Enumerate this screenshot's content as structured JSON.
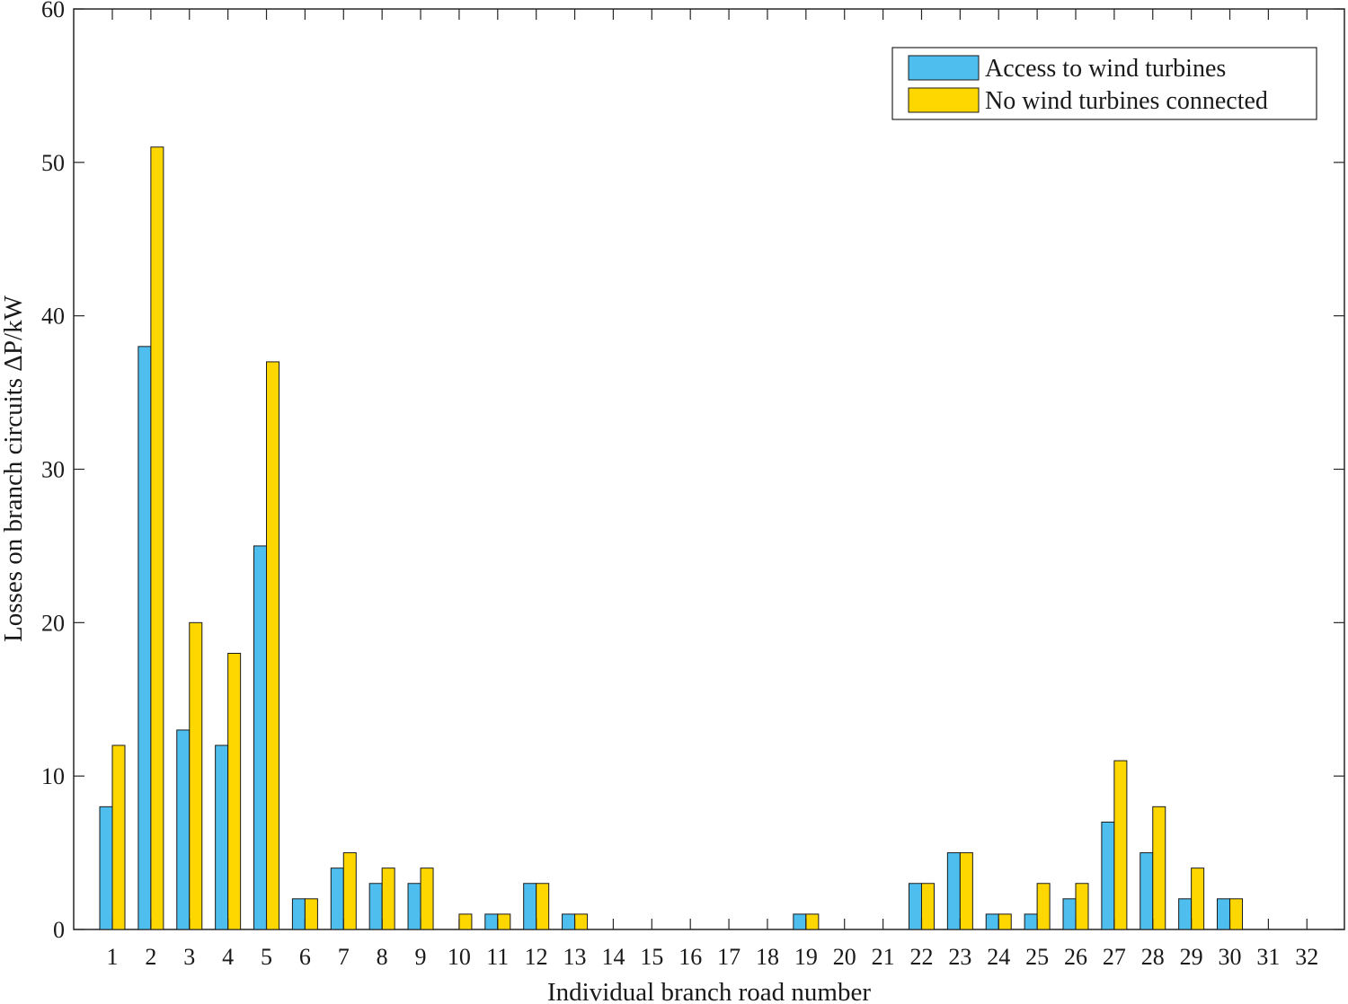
{
  "chart_data": {
    "type": "bar",
    "xlabel": "Individual branch road number",
    "ylabel": "Losses on branch circuits ΔP/kW",
    "ylim": [
      0,
      60
    ],
    "yticks": [
      0,
      10,
      20,
      30,
      40,
      50,
      60
    ],
    "grid": false,
    "legend_position": "top-right",
    "categories": [
      "1",
      "2",
      "3",
      "4",
      "5",
      "6",
      "7",
      "8",
      "9",
      "10",
      "11",
      "12",
      "13",
      "14",
      "15",
      "16",
      "17",
      "18",
      "19",
      "20",
      "21",
      "22",
      "23",
      "24",
      "25",
      "26",
      "27",
      "28",
      "29",
      "30",
      "31",
      "32"
    ],
    "series": [
      {
        "name": "Access to wind turbines",
        "color": "#4DBEEE",
        "values": [
          8,
          38,
          13,
          12,
          25,
          2,
          4,
          3,
          3,
          0,
          1,
          3,
          1,
          0,
          0,
          0,
          0,
          0,
          1,
          0,
          0,
          3,
          5,
          1,
          1,
          2,
          7,
          5,
          2,
          2,
          0,
          0
        ]
      },
      {
        "name": "No wind turbines connected",
        "color": "#FFD700",
        "values": [
          12,
          51,
          20,
          18,
          37,
          2,
          5,
          4,
          4,
          1,
          1,
          3,
          1,
          0,
          0,
          0,
          0,
          0,
          1,
          0,
          0,
          3,
          5,
          1,
          3,
          3,
          11,
          8,
          4,
          2,
          0,
          0
        ]
      }
    ]
  }
}
